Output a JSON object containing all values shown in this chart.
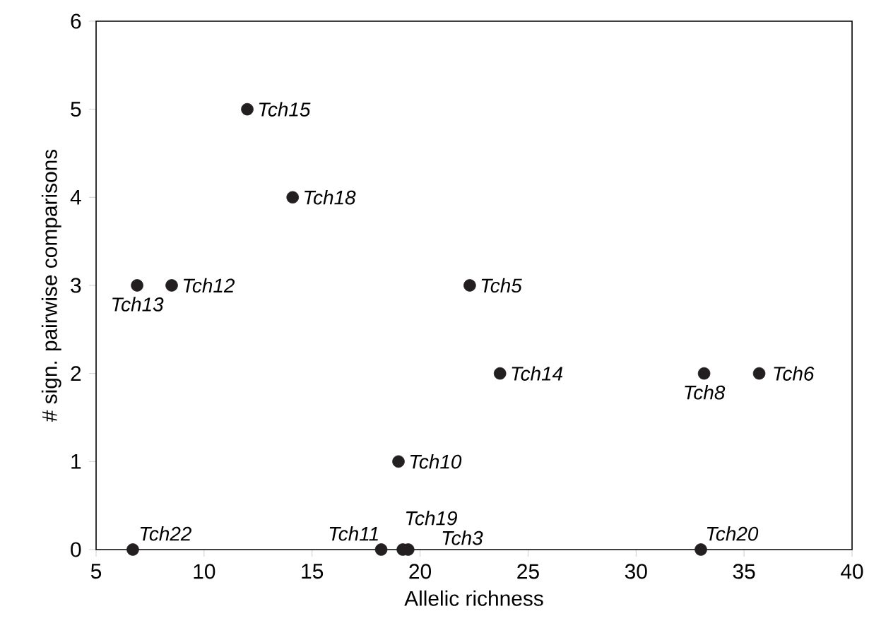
{
  "chart_data": {
    "type": "scatter",
    "xlabel": "Allelic richness",
    "ylabel": "# sign. pairwise comparisons",
    "x": [
      12.0,
      14.1,
      6.9,
      8.5,
      22.3,
      23.7,
      33.15,
      35.7,
      19.0,
      6.7,
      18.2,
      19.2,
      19.45,
      33.0
    ],
    "series": [
      {
        "color": "#231f20",
        "values": [
          5,
          4,
          3,
          3,
          3,
          2,
          2,
          2,
          1,
          0,
          0,
          0,
          0,
          0
        ]
      }
    ],
    "marker": "circle",
    "grid": false,
    "xlim": [
      5,
      40
    ],
    "ylim": [
      0,
      6
    ],
    "xticks": [
      5,
      10,
      15,
      20,
      25,
      30,
      35,
      40
    ],
    "yticks": [
      0,
      1,
      2,
      3,
      4,
      5,
      6
    ],
    "annotations": [
      {
        "text": "Tch15",
        "x": 12.0,
        "y": 5
      },
      {
        "text": "Tch18",
        "x": 14.1,
        "y": 4
      },
      {
        "text": "Tch13",
        "x": 6.9,
        "y": 3
      },
      {
        "text": "Tch12",
        "x": 8.5,
        "y": 3
      },
      {
        "text": "Tch5",
        "x": 22.3,
        "y": 3
      },
      {
        "text": "Tch14",
        "x": 23.7,
        "y": 2
      },
      {
        "text": "Tch8",
        "x": 33.15,
        "y": 2
      },
      {
        "text": "Tch6",
        "x": 35.7,
        "y": 2
      },
      {
        "text": "Tch10",
        "x": 19.0,
        "y": 1
      },
      {
        "text": "Tch22",
        "x": 6.7,
        "y": 0
      },
      {
        "text": "Tch11",
        "x": 18.2,
        "y": 0
      },
      {
        "text": "Tch19",
        "x": 19.2,
        "y": 0
      },
      {
        "text": "Tch3",
        "x": 19.45,
        "y": 0
      },
      {
        "text": "Tch20",
        "x": 33.0,
        "y": 0
      }
    ]
  }
}
